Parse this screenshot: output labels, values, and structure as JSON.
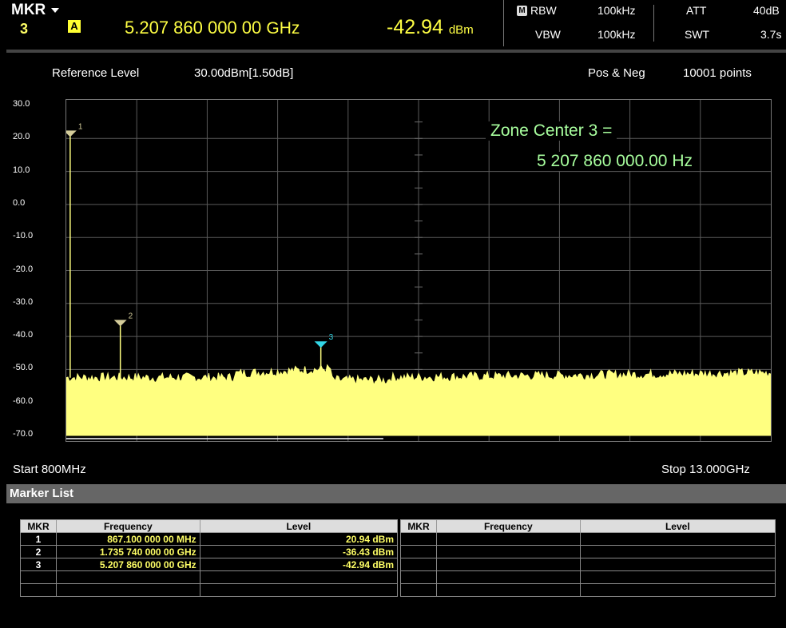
{
  "header": {
    "mkr_label": "MKR",
    "mkr_number": "3",
    "trace_badge": "A",
    "frequency_value": "5.207 860 000 00",
    "frequency_unit": "GHz",
    "level_value": "-42.94",
    "level_unit": "dBm",
    "manual_badge": "M",
    "rbw_label": "RBW",
    "rbw_value": "100kHz",
    "vbw_label": "VBW",
    "vbw_value": "100kHz",
    "att_label": "ATT",
    "att_value": "40dB",
    "swt_label": "SWT",
    "swt_value": "3.7s"
  },
  "info": {
    "ref_label": "Reference Level",
    "ref_value": "30.00dBm[1.50dB]",
    "detector": "Pos & Neg",
    "points": "10001 points"
  },
  "zone": {
    "line1": "Zone Center 3 =",
    "line2": "5 207 860 000.00 Hz"
  },
  "sweep": {
    "start_label": "Start 800MHz",
    "stop_label": "Stop 13.000GHz"
  },
  "chart_data": {
    "type": "line",
    "xlim_ghz": [
      0.8,
      13.0
    ],
    "ylim_dbm": [
      -70,
      30
    ],
    "y_ticks": [
      "30.0",
      "20.0",
      "10.0",
      "0.0",
      "-10.0",
      "-20.0",
      "-30.0",
      "-40.0",
      "-50.0",
      "-60.0",
      "-70.0"
    ],
    "grid": true,
    "trace_color": "#ffff80",
    "noise_floor_dbm": -52.5,
    "markers": [
      {
        "id": "1",
        "freq_ghz": 0.8671,
        "level_dbm": 20.94,
        "color": "#d4cc9a"
      },
      {
        "id": "2",
        "freq_ghz": 1.73574,
        "level_dbm": -36.43,
        "color": "#d4cc9a"
      },
      {
        "id": "3",
        "freq_ghz": 5.20786,
        "level_dbm": -42.94,
        "color": "#33d6e6"
      }
    ]
  },
  "marker_list": {
    "title": "Marker List",
    "columns": [
      "MKR",
      "Frequency",
      "Level"
    ],
    "rows": [
      {
        "mkr": "1",
        "frequency": "867.100 000 00 MHz",
        "level": "20.94 dBm"
      },
      {
        "mkr": "2",
        "frequency": "1.735 740 000 00 GHz",
        "level": "-36.43 dBm"
      },
      {
        "mkr": "3",
        "frequency": "5.207 860 000 00 GHz",
        "level": "-42.94 dBm"
      }
    ]
  }
}
